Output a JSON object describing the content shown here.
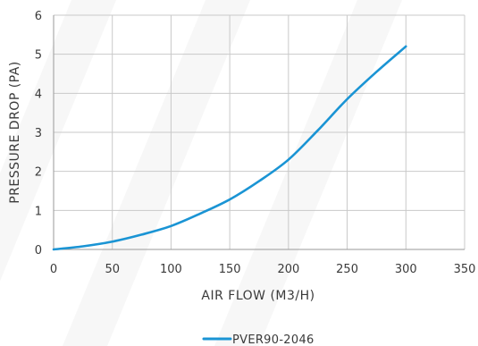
{
  "chart_data": {
    "type": "line",
    "title": "",
    "xlabel": "AIR FLOW (M3/H)",
    "ylabel": "PRESSURE DROP (PA)",
    "xlim": [
      0,
      350
    ],
    "ylim": [
      0,
      6
    ],
    "x_ticks": [
      "0",
      "50",
      "100",
      "150",
      "200",
      "250",
      "300",
      "350"
    ],
    "y_ticks": [
      "0",
      "1",
      "2",
      "3",
      "4",
      "5",
      "6"
    ],
    "grid": true,
    "legend_position": "bottom-center",
    "series": [
      {
        "name": "PVER90-2046",
        "color": "#1a94d4",
        "x": [
          0,
          25,
          50,
          75,
          100,
          125,
          150,
          175,
          200,
          225,
          250,
          275,
          300
        ],
        "y": [
          0,
          0.08,
          0.2,
          0.38,
          0.6,
          0.92,
          1.28,
          1.75,
          2.3,
          3.05,
          3.85,
          4.55,
          5.2
        ]
      }
    ]
  }
}
